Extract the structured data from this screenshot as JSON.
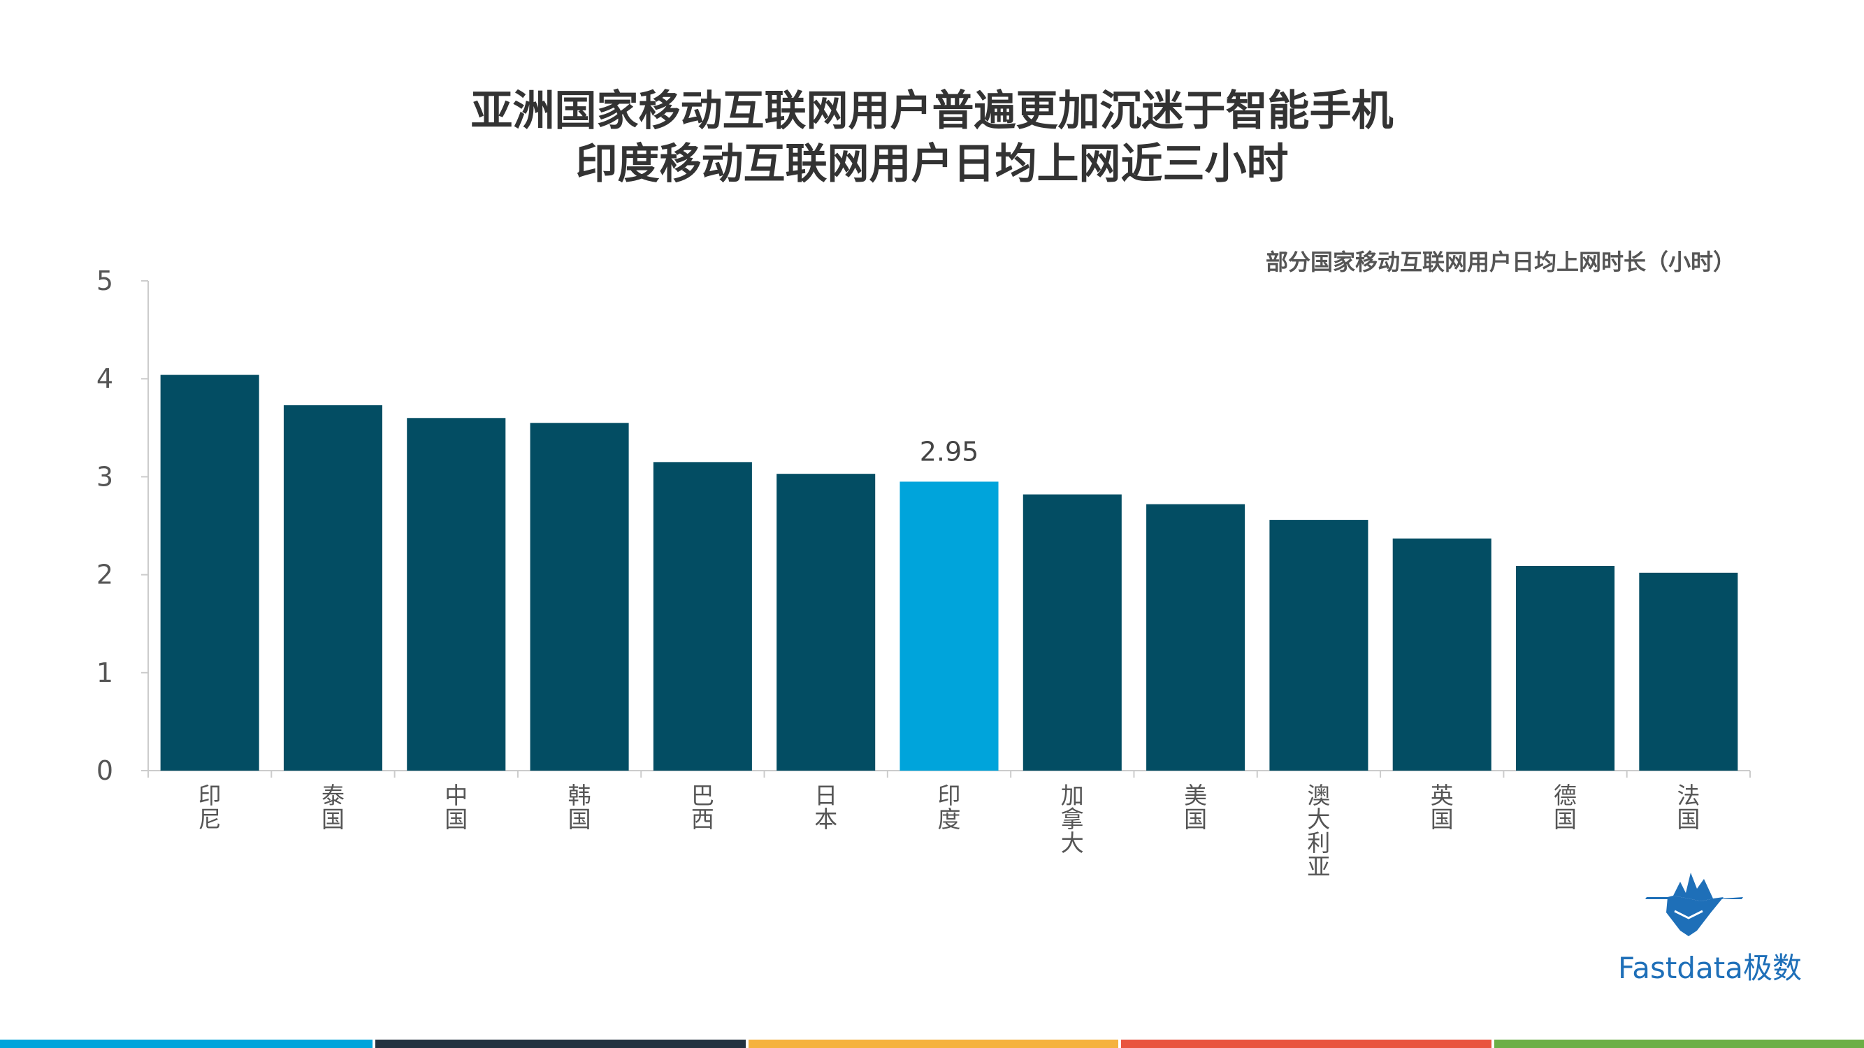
{
  "title_line1": "亚洲国家移动互联网用户普遍更加沉迷于智能手机",
  "title_line2": "印度移动互联网用户日均上网近三小时",
  "chart_data": {
    "type": "bar",
    "subtitle": "部分国家移动互联网用户日均上网时长（小时）",
    "categories": [
      "印尼",
      "泰国",
      "中国",
      "韩国",
      "巴西",
      "日本",
      "印度",
      "加拿大",
      "美国",
      "澳大利亚",
      "英国",
      "德国",
      "法国"
    ],
    "values": [
      4.04,
      3.73,
      3.6,
      3.55,
      3.15,
      3.03,
      2.95,
      2.82,
      2.72,
      2.56,
      2.37,
      2.09,
      2.02
    ],
    "highlight_index": 6,
    "highlight_label": "2.95",
    "yticks": [
      "0",
      "1",
      "2",
      "3",
      "4",
      "5"
    ],
    "ylim": [
      0,
      5
    ],
    "grid": false,
    "colors": {
      "bar": "#034d63",
      "highlight": "#00a4db",
      "axis": "#cccccc"
    }
  },
  "brand": "Fastdata极数",
  "stripe_colors": [
    "#00a4db",
    "#233240",
    "#f5b23e",
    "#e9543f",
    "#6caf46"
  ]
}
